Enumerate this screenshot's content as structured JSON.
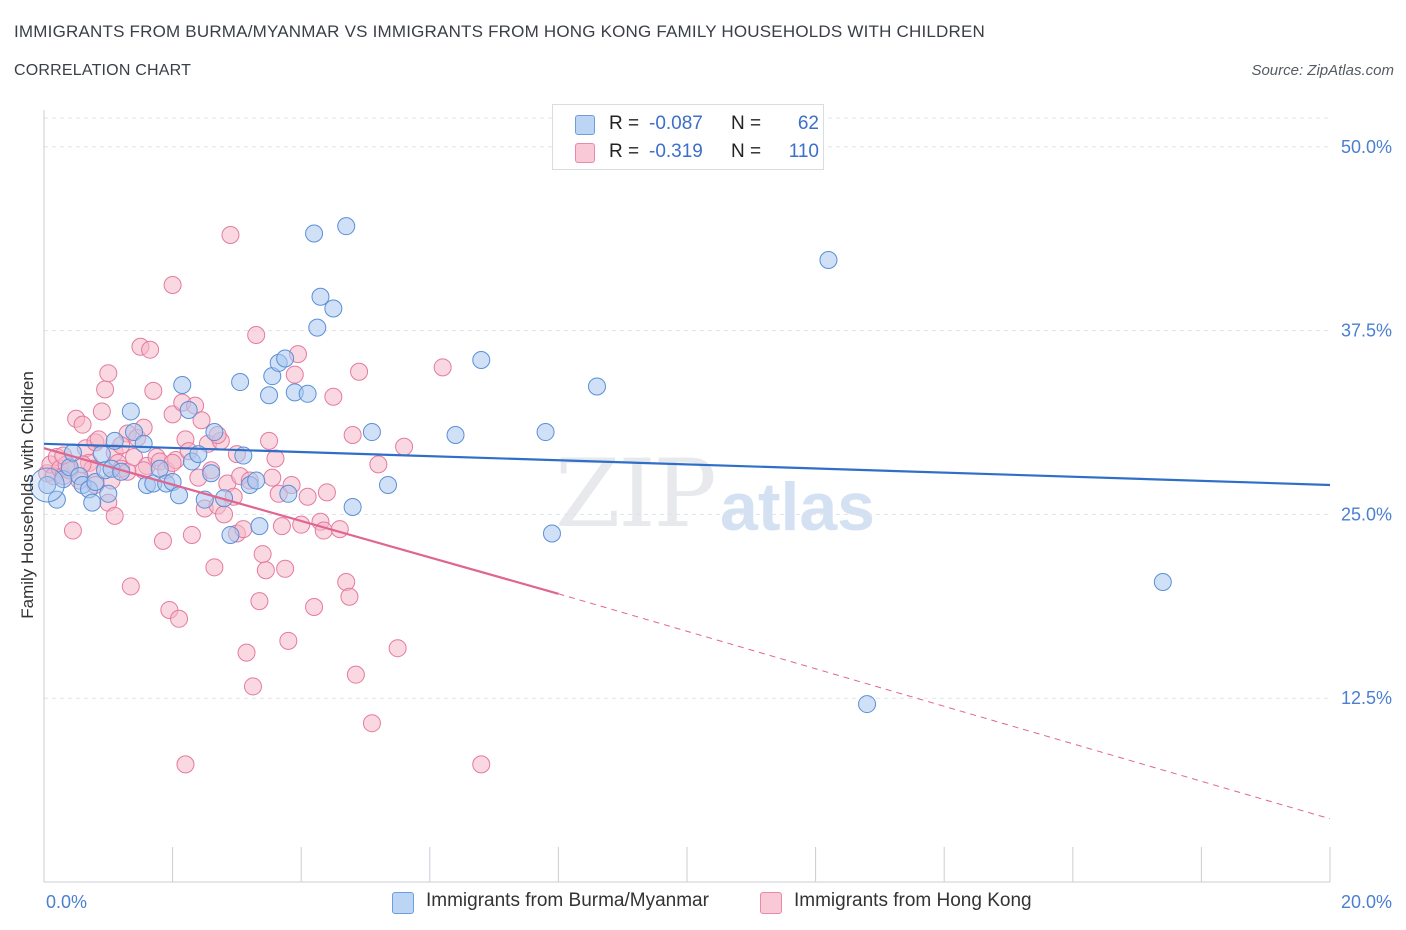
{
  "title": "IMMIGRANTS FROM BURMA/MYANMAR VS IMMIGRANTS FROM HONG KONG FAMILY HOUSEHOLDS WITH CHILDREN",
  "subtitle": "CORRELATION CHART",
  "source": "Source: ZipAtlas.com",
  "watermark": {
    "zip": "ZIP",
    "atlas": "atlas"
  },
  "legend": {
    "rows": [
      {
        "r_label": "R =",
        "r_value": "-0.087",
        "n_label": "N =",
        "n_value": "62",
        "color": "#a9c8f0"
      },
      {
        "r_label": "R =",
        "r_value": "-0.319",
        "n_label": "N =",
        "n_value": "110",
        "color": "#f5b8c9"
      }
    ]
  },
  "bottom_legend": [
    {
      "label": "Immigrants from Burma/Myanmar",
      "color": "#a9c8f0"
    },
    {
      "label": "Immigrants from Hong Kong",
      "color": "#f5b8c9"
    }
  ],
  "chart_data": {
    "type": "scatter",
    "xlabel": "",
    "ylabel": "Family Households with Children",
    "xlim": [
      0,
      20
    ],
    "ylim": [
      0,
      52.5
    ],
    "x_tick_labels": [
      {
        "value": 0,
        "label": "0.0%"
      },
      {
        "value": 20,
        "label": "20.0%"
      }
    ],
    "y_tick_labels": [
      {
        "value": 12.5,
        "label": "12.5%"
      },
      {
        "value": 25,
        "label": "25.0%"
      },
      {
        "value": 37.5,
        "label": "37.5%"
      },
      {
        "value": 50,
        "label": "50.0%"
      }
    ],
    "grid": true,
    "series": [
      {
        "name": "Immigrants from Burma/Myanmar",
        "color": "#5b8fd6",
        "fill": "#a9c8f0",
        "trend": {
          "x": [
            0,
            20
          ],
          "y": [
            29.8,
            27.0
          ],
          "color": "#2f6fc8"
        },
        "points": [
          [
            0.05,
            27.0
          ],
          [
            0.2,
            26.0
          ],
          [
            0.3,
            27.4
          ],
          [
            0.4,
            28.2
          ],
          [
            0.45,
            29.2
          ],
          [
            0.55,
            27.6
          ],
          [
            0.6,
            27.0
          ],
          [
            0.7,
            26.7
          ],
          [
            0.75,
            25.8
          ],
          [
            0.8,
            27.2
          ],
          [
            0.9,
            29.1
          ],
          [
            0.95,
            28.0
          ],
          [
            1.0,
            26.4
          ],
          [
            1.05,
            28.1
          ],
          [
            1.1,
            30.0
          ],
          [
            1.2,
            27.9
          ],
          [
            1.35,
            32.0
          ],
          [
            1.4,
            30.6
          ],
          [
            1.55,
            29.8
          ],
          [
            1.6,
            27.0
          ],
          [
            1.7,
            27.1
          ],
          [
            1.8,
            28.1
          ],
          [
            1.9,
            27.1
          ],
          [
            2.0,
            27.2
          ],
          [
            2.1,
            26.3
          ],
          [
            2.15,
            33.8
          ],
          [
            2.25,
            32.1
          ],
          [
            2.3,
            28.6
          ],
          [
            2.4,
            29.1
          ],
          [
            2.5,
            26.0
          ],
          [
            2.6,
            27.8
          ],
          [
            2.65,
            30.6
          ],
          [
            2.8,
            26.1
          ],
          [
            2.9,
            23.6
          ],
          [
            3.05,
            34.0
          ],
          [
            3.1,
            29.0
          ],
          [
            3.2,
            27.0
          ],
          [
            3.3,
            27.3
          ],
          [
            3.35,
            24.2
          ],
          [
            3.5,
            33.1
          ],
          [
            3.55,
            34.4
          ],
          [
            3.65,
            35.3
          ],
          [
            3.75,
            35.6
          ],
          [
            3.8,
            26.4
          ],
          [
            3.9,
            33.3
          ],
          [
            4.1,
            33.2
          ],
          [
            4.2,
            44.1
          ],
          [
            4.25,
            37.7
          ],
          [
            4.3,
            39.8
          ],
          [
            4.5,
            39.0
          ],
          [
            4.7,
            44.6
          ],
          [
            4.8,
            25.5
          ],
          [
            5.1,
            30.6
          ],
          [
            5.35,
            27.0
          ],
          [
            6.4,
            30.4
          ],
          [
            6.8,
            35.5
          ],
          [
            7.8,
            30.6
          ],
          [
            7.9,
            23.7
          ],
          [
            8.6,
            33.7
          ],
          [
            12.2,
            42.3
          ],
          [
            12.8,
            12.1
          ],
          [
            17.4,
            20.4
          ]
        ]
      },
      {
        "name": "Immigrants from Hong Kong",
        "color": "#e57aa0",
        "fill": "#f5b8c9",
        "trend": {
          "x": [
            0,
            8.0
          ],
          "y": [
            29.5,
            19.6
          ],
          "color": "#e0668f"
        },
        "trend_dashed": {
          "x": [
            8.0,
            20
          ],
          "y": [
            19.6,
            4.3
          ]
        },
        "points": [
          [
            0.05,
            27.8
          ],
          [
            0.1,
            28.4
          ],
          [
            0.15,
            27.6
          ],
          [
            0.2,
            28.9
          ],
          [
            0.25,
            28.1
          ],
          [
            0.3,
            27.6
          ],
          [
            0.35,
            28.4
          ],
          [
            0.4,
            28.0
          ],
          [
            0.45,
            23.9
          ],
          [
            0.5,
            31.5
          ],
          [
            0.55,
            27.3
          ],
          [
            0.6,
            31.1
          ],
          [
            0.65,
            29.5
          ],
          [
            0.7,
            28.5
          ],
          [
            0.75,
            28.1
          ],
          [
            0.8,
            29.9
          ],
          [
            0.85,
            30.1
          ],
          [
            0.9,
            32.0
          ],
          [
            0.95,
            33.5
          ],
          [
            1.0,
            25.8
          ],
          [
            1.0,
            34.6
          ],
          [
            1.05,
            27.3
          ],
          [
            1.1,
            29.2
          ],
          [
            1.1,
            24.9
          ],
          [
            1.15,
            28.5
          ],
          [
            1.2,
            28.1
          ],
          [
            1.3,
            30.5
          ],
          [
            1.3,
            27.9
          ],
          [
            1.35,
            20.1
          ],
          [
            1.4,
            28.9
          ],
          [
            1.45,
            30.2
          ],
          [
            1.5,
            36.4
          ],
          [
            1.55,
            30.9
          ],
          [
            1.6,
            28.3
          ],
          [
            1.65,
            36.2
          ],
          [
            1.7,
            33.4
          ],
          [
            1.75,
            28.9
          ],
          [
            1.8,
            28.6
          ],
          [
            1.85,
            23.2
          ],
          [
            1.9,
            28.0
          ],
          [
            1.95,
            18.5
          ],
          [
            2.0,
            40.6
          ],
          [
            2.0,
            31.8
          ],
          [
            2.05,
            28.7
          ],
          [
            2.1,
            17.9
          ],
          [
            2.15,
            32.6
          ],
          [
            2.2,
            30.1
          ],
          [
            2.25,
            29.3
          ],
          [
            2.3,
            23.6
          ],
          [
            2.35,
            32.4
          ],
          [
            2.4,
            27.5
          ],
          [
            2.45,
            31.4
          ],
          [
            2.5,
            25.4
          ],
          [
            2.55,
            29.8
          ],
          [
            2.6,
            28.0
          ],
          [
            2.65,
            21.4
          ],
          [
            2.7,
            25.6
          ],
          [
            2.75,
            30.0
          ],
          [
            2.8,
            25.0
          ],
          [
            2.85,
            27.1
          ],
          [
            2.9,
            44.0
          ],
          [
            2.95,
            26.2
          ],
          [
            3.0,
            23.7
          ],
          [
            3.05,
            27.6
          ],
          [
            3.1,
            24.0
          ],
          [
            3.15,
            15.6
          ],
          [
            3.2,
            27.3
          ],
          [
            3.25,
            13.3
          ],
          [
            3.3,
            37.2
          ],
          [
            3.35,
            19.1
          ],
          [
            3.4,
            22.3
          ],
          [
            3.45,
            21.2
          ],
          [
            3.5,
            30.0
          ],
          [
            3.55,
            27.5
          ],
          [
            3.6,
            28.8
          ],
          [
            3.65,
            26.4
          ],
          [
            3.7,
            24.2
          ],
          [
            3.75,
            21.3
          ],
          [
            3.8,
            16.4
          ],
          [
            3.85,
            27.0
          ],
          [
            3.9,
            34.5
          ],
          [
            3.95,
            35.9
          ],
          [
            4.0,
            24.3
          ],
          [
            4.1,
            26.2
          ],
          [
            4.2,
            18.7
          ],
          [
            4.3,
            24.5
          ],
          [
            4.35,
            23.9
          ],
          [
            4.4,
            26.5
          ],
          [
            4.5,
            33.0
          ],
          [
            4.6,
            24.0
          ],
          [
            4.7,
            20.4
          ],
          [
            4.75,
            19.4
          ],
          [
            4.8,
            30.4
          ],
          [
            4.85,
            14.1
          ],
          [
            4.9,
            34.7
          ],
          [
            5.1,
            10.8
          ],
          [
            5.2,
            28.4
          ],
          [
            5.5,
            15.9
          ],
          [
            5.6,
            29.6
          ],
          [
            6.2,
            35.0
          ],
          [
            6.8,
            8.0
          ],
          [
            2.2,
            8.0
          ],
          [
            1.2,
            29.7
          ],
          [
            1.55,
            28.0
          ],
          [
            0.3,
            29.0
          ],
          [
            0.8,
            27.0
          ],
          [
            2.7,
            30.4
          ],
          [
            3.0,
            29.1
          ],
          [
            2.0,
            28.5
          ],
          [
            0.6,
            28.4
          ]
        ]
      }
    ]
  }
}
